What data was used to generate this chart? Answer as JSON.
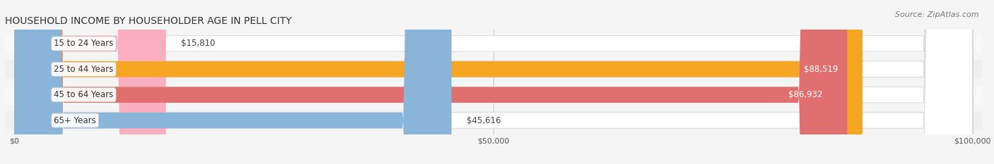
{
  "title": "HOUSEHOLD INCOME BY HOUSEHOLDER AGE IN PELL CITY",
  "source": "Source: ZipAtlas.com",
  "categories": [
    "15 to 24 Years",
    "25 to 44 Years",
    "45 to 64 Years",
    "65+ Years"
  ],
  "values": [
    15810,
    88519,
    86932,
    45616
  ],
  "bar_colors": [
    "#f9afc0",
    "#f5a623",
    "#e07070",
    "#8ab4d8"
  ],
  "label_colors": [
    "#444444",
    "#ffffff",
    "#ffffff",
    "#444444"
  ],
  "max_value": 100000,
  "tick_values": [
    0,
    50000,
    100000
  ],
  "tick_labels": [
    "$0",
    "$50,000",
    "$100,000"
  ],
  "background_color": "#f5f5f5",
  "bar_bg_color": "#ffffff",
  "bar_bg_edge_color": "#dddddd",
  "figsize": [
    14.06,
    2.33
  ],
  "dpi": 100,
  "bar_height": 0.62,
  "label_fontsize": 8.5,
  "title_fontsize": 10,
  "source_fontsize": 8,
  "category_fontsize": 8.5,
  "row_bg_colors": [
    "#f8f8f8",
    "#f0f0f0",
    "#f8f8f8",
    "#f0f0f0"
  ]
}
